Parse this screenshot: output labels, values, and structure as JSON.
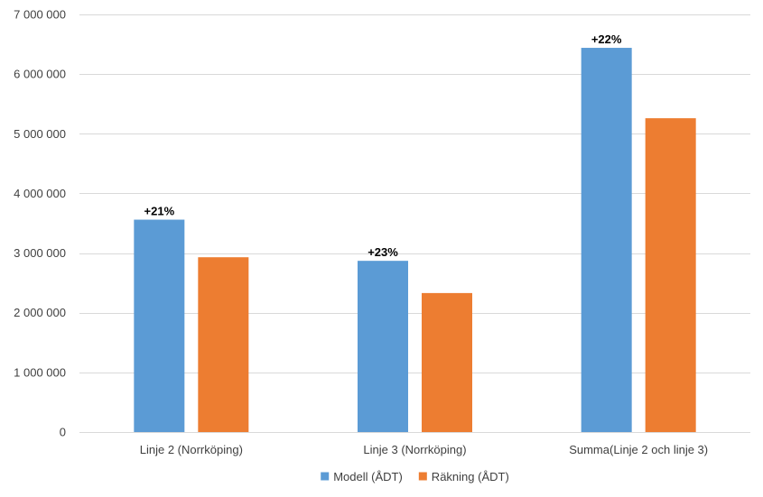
{
  "chart_data": {
    "type": "bar",
    "title": "",
    "xlabel": "",
    "ylabel": "",
    "categories": [
      "Linje 2 (Norrköping)",
      "Linje 3 (Norrköping)",
      "Summa(Linje 2 och linje 3)"
    ],
    "series": [
      {
        "name": "Modell (ÅDT)",
        "color": "#5B9BD5",
        "values": [
          3560000,
          2870000,
          6440000
        ],
        "annotations": [
          "+21%",
          "+23%",
          "+22%"
        ]
      },
      {
        "name": "Räkning (ÅDT)",
        "color": "#ED7D31",
        "values": [
          2930000,
          2330000,
          5260000
        ],
        "annotations": [
          "",
          "",
          ""
        ]
      }
    ],
    "ylim": [
      0,
      7000000
    ],
    "yticks": [
      0,
      1000000,
      2000000,
      3000000,
      4000000,
      5000000,
      6000000,
      7000000
    ],
    "ytick_labels": [
      "0",
      "1 000 000",
      "2 000 000",
      "3 000 000",
      "4 000 000",
      "5 000 000",
      "6 000 000",
      "7 000 000"
    ],
    "grid": true,
    "legend": "bottom-center"
  }
}
